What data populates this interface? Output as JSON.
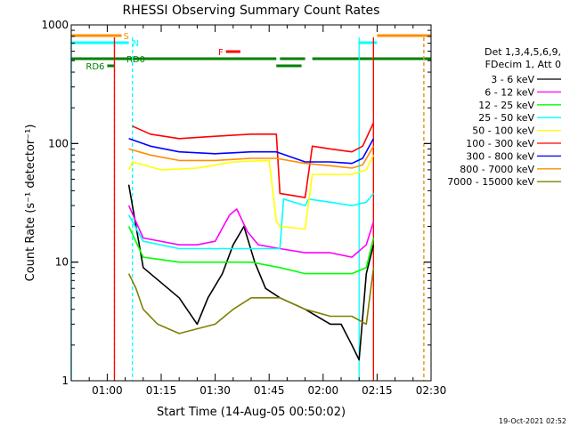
{
  "chart_data": {
    "type": "line",
    "title": "RHESSI Observing Summary Count Rates",
    "xlabel": "Start Time (14-Aug-05 00:50:02)",
    "ylabel": "Count Rate (s⁻¹ detector⁻¹)",
    "y_scale": "log",
    "ylim": [
      1,
      1000
    ],
    "xlim": [
      "00:50",
      "02:30"
    ],
    "x_ticks": [
      "01:00",
      "01:15",
      "01:30",
      "01:45",
      "02:00",
      "02:15",
      "02:30"
    ],
    "y_ticks": [
      "1",
      "10",
      "100",
      "1000"
    ],
    "legend_header": [
      "Det 1,3,4,5,6,9,",
      "FDecim 1, Att 0"
    ],
    "legend_placement": "right",
    "timestamp": "19-Oct-2021 02:52",
    "series": [
      {
        "name": "3 - 6 keV",
        "color": "#000000",
        "x": [
          "01:06",
          "01:10",
          "01:20",
          "01:25",
          "01:28",
          "01:32",
          "01:35",
          "01:38",
          "01:41",
          "01:44",
          "01:48",
          "01:55",
          "02:02",
          "02:05",
          "02:08",
          "02:10",
          "02:12",
          "02:14"
        ],
        "y": [
          45,
          9,
          5,
          3,
          5,
          8,
          14,
          20,
          10,
          6,
          5,
          4,
          3,
          3,
          2,
          1.5,
          8,
          14
        ]
      },
      {
        "name": "6 - 12 keV",
        "color": "#ff00ff",
        "x": [
          "01:06",
          "01:10",
          "01:20",
          "01:25",
          "01:30",
          "01:34",
          "01:36",
          "01:39",
          "01:42",
          "01:48",
          "01:55",
          "02:02",
          "02:08",
          "02:12",
          "02:14"
        ],
        "y": [
          30,
          16,
          14,
          14,
          15,
          25,
          28,
          18,
          14,
          13,
          12,
          12,
          11,
          14,
          22
        ]
      },
      {
        "name": "12 - 25 keV",
        "color": "#00ff00",
        "x": [
          "01:06",
          "01:10",
          "01:20",
          "01:30",
          "01:40",
          "01:48",
          "01:55",
          "02:02",
          "02:08",
          "02:12",
          "02:14"
        ],
        "y": [
          20,
          11,
          10,
          10,
          10,
          9,
          8,
          8,
          8,
          9,
          16
        ]
      },
      {
        "name": "25 - 50 keV",
        "color": "#00ffff",
        "x": [
          "01:06",
          "01:10",
          "01:20",
          "01:30",
          "01:40",
          "01:48",
          "01:49",
          "01:55",
          "01:56",
          "02:02",
          "02:08",
          "02:12",
          "02:14"
        ],
        "y": [
          25,
          15,
          13,
          13,
          13,
          13,
          34,
          30,
          34,
          32,
          30,
          32,
          38
        ]
      },
      {
        "name": "50 - 100 keV",
        "color": "#ffff00",
        "x": [
          "01:06",
          "01:07",
          "01:15",
          "01:25",
          "01:35",
          "01:45",
          "01:47",
          "01:48",
          "01:55",
          "01:57",
          "02:02",
          "02:08",
          "02:12",
          "02:14"
        ],
        "y": [
          60,
          70,
          60,
          62,
          70,
          72,
          22,
          20,
          19,
          55,
          55,
          55,
          60,
          80
        ]
      },
      {
        "name": "100 - 300 keV",
        "color": "#ff0000",
        "x": [
          "01:07",
          "01:12",
          "01:20",
          "01:30",
          "01:40",
          "01:47",
          "01:48",
          "01:55",
          "01:57",
          "02:02",
          "02:08",
          "02:11",
          "02:14"
        ],
        "y": [
          140,
          120,
          110,
          115,
          120,
          120,
          38,
          35,
          95,
          90,
          85,
          95,
          150
        ]
      },
      {
        "name": "300 - 800 keV",
        "color": "#0000ff",
        "x": [
          "01:06",
          "01:12",
          "01:20",
          "01:30",
          "01:40",
          "01:47",
          "01:55",
          "02:02",
          "02:08",
          "02:11",
          "02:14"
        ],
        "y": [
          110,
          95,
          85,
          82,
          85,
          85,
          70,
          70,
          68,
          75,
          110
        ]
      },
      {
        "name": "800 - 7000 keV",
        "color": "#ff8c00",
        "x": [
          "01:06",
          "01:12",
          "01:20",
          "01:30",
          "01:40",
          "01:47",
          "01:55",
          "02:02",
          "02:08",
          "02:11",
          "02:14"
        ],
        "y": [
          90,
          80,
          72,
          72,
          75,
          75,
          68,
          65,
          62,
          66,
          95
        ]
      },
      {
        "name": "7000 - 15000 keV",
        "color": "#808000",
        "x": [
          "01:06",
          "01:08",
          "01:10",
          "01:14",
          "01:20",
          "01:30",
          "01:35",
          "01:40",
          "01:48",
          "01:55",
          "02:02",
          "02:08",
          "02:12",
          "02:14"
        ],
        "y": [
          8,
          6,
          4,
          3,
          2.5,
          3,
          4,
          5,
          5,
          4,
          3.5,
          3.5,
          3,
          9
        ]
      }
    ],
    "state_bars": [
      {
        "label": "S",
        "color": "#ff8c00",
        "segments": [
          [
            "00:50",
            "01:04"
          ],
          [
            "02:15",
            "02:30"
          ]
        ]
      },
      {
        "label": "N",
        "color": "#00ffff",
        "segments": [
          [
            "00:50",
            "01:06"
          ],
          [
            "02:10",
            "02:15"
          ]
        ]
      },
      {
        "label": "F",
        "color": "#ff0000",
        "segments": [
          [
            "01:33",
            "01:37"
          ]
        ]
      },
      {
        "label": "RD0",
        "color": "#008000",
        "segments": [
          [
            "00:50",
            "01:47"
          ],
          [
            "01:48",
            "01:55"
          ],
          [
            "01:57",
            "02:30"
          ]
        ]
      },
      {
        "label": "RD6",
        "color": "#008000",
        "segments": [
          [
            "01:00",
            "01:02"
          ],
          [
            "01:47",
            "01:54"
          ]
        ]
      }
    ],
    "vertical_markers": [
      {
        "x": "00:50",
        "color": "#00ffff",
        "style": "solid"
      },
      {
        "x": "01:02",
        "color": "#ff8c00",
        "style": "dashed"
      },
      {
        "x": "01:02",
        "color": "#ff0000",
        "style": "solid"
      },
      {
        "x": "01:07",
        "color": "#00ffff",
        "style": "dashed"
      },
      {
        "x": "02:10",
        "color": "#00ffff",
        "style": "solid"
      },
      {
        "x": "02:14",
        "color": "#ff8c00",
        "style": "solid"
      },
      {
        "x": "02:14",
        "color": "#ff0000",
        "style": "solid"
      },
      {
        "x": "02:28",
        "color": "#00ffff",
        "style": "dashed"
      },
      {
        "x": "02:28",
        "color": "#ff8c00",
        "style": "dashed"
      }
    ]
  }
}
